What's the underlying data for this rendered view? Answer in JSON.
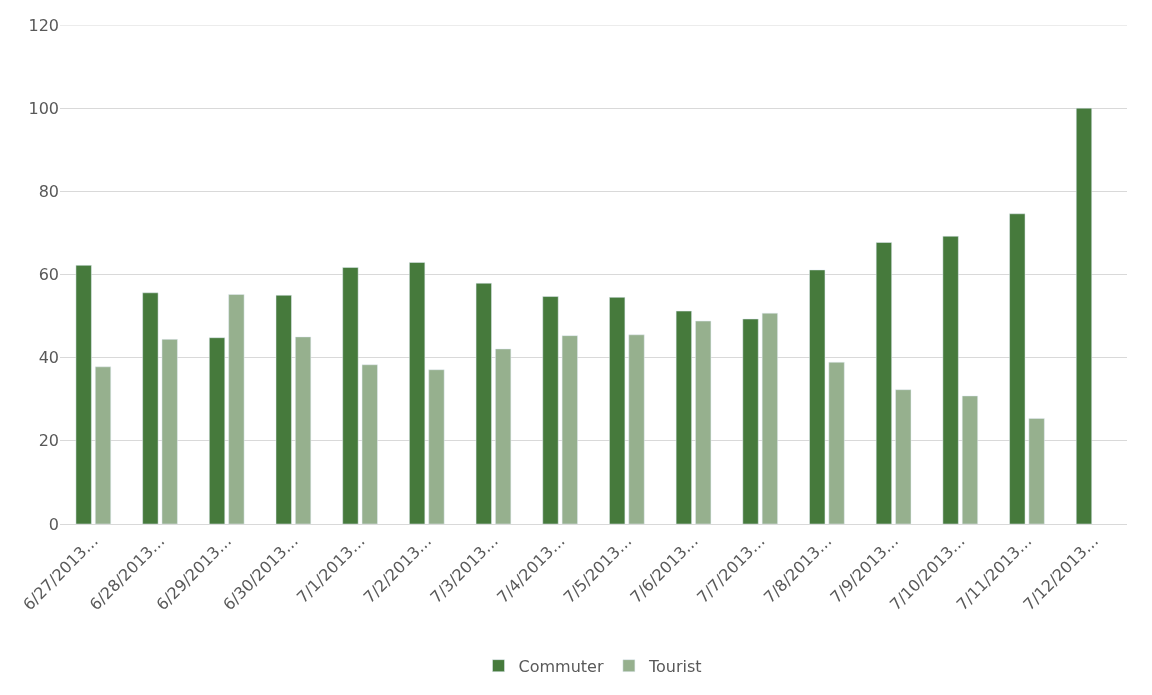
{
  "chart_data": {
    "type": "bar",
    "categories": [
      "6/27/2013…",
      "6/28/2013…",
      "6/29/2013…",
      "6/30/2013…",
      "7/1/2013…",
      "7/2/2013…",
      "7/3/2013…",
      "7/4/2013…",
      "7/5/2013…",
      "7/6/2013…",
      "7/7/2013…",
      "7/8/2013…",
      "7/9/2013…",
      "7/10/2013…",
      "7/11/2013…",
      "7/12/2013…"
    ],
    "series": [
      {
        "name": "Commuter",
        "color": "#467a3c",
        "values": [
          62.2,
          55.6,
          44.8,
          55.0,
          61.7,
          62.9,
          57.9,
          54.7,
          54.5,
          51.2,
          49.3,
          61.1,
          67.7,
          69.2,
          74.6,
          100
        ]
      },
      {
        "name": "Tourist",
        "color": "#96b08e",
        "values": [
          37.8,
          44.4,
          55.2,
          45.0,
          38.3,
          37.1,
          42.1,
          45.3,
          45.5,
          48.8,
          50.7,
          38.9,
          32.3,
          30.8,
          25.4,
          null
        ]
      }
    ],
    "ylim": [
      0,
      120
    ],
    "yticks": [
      0,
      20,
      40,
      60,
      80,
      100,
      120
    ],
    "grid": "y",
    "legend": "bottom"
  }
}
